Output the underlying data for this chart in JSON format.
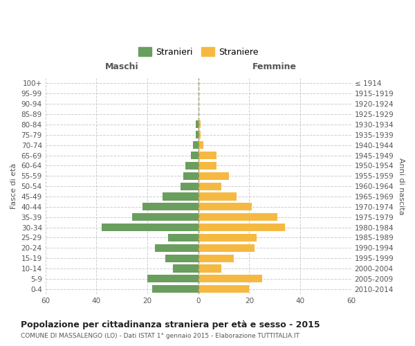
{
  "age_groups": [
    "0-4",
    "5-9",
    "10-14",
    "15-19",
    "20-24",
    "25-29",
    "30-34",
    "35-39",
    "40-44",
    "45-49",
    "50-54",
    "55-59",
    "60-64",
    "65-69",
    "70-74",
    "75-79",
    "80-84",
    "85-89",
    "90-94",
    "95-99",
    "100+"
  ],
  "birth_years": [
    "2010-2014",
    "2005-2009",
    "2000-2004",
    "1995-1999",
    "1990-1994",
    "1985-1989",
    "1980-1984",
    "1975-1979",
    "1970-1974",
    "1965-1969",
    "1960-1964",
    "1955-1959",
    "1950-1954",
    "1945-1949",
    "1940-1944",
    "1935-1939",
    "1930-1934",
    "1925-1929",
    "1920-1924",
    "1915-1919",
    "≤ 1914"
  ],
  "males": [
    18,
    20,
    10,
    13,
    17,
    12,
    38,
    26,
    22,
    14,
    7,
    6,
    5,
    3,
    2,
    1,
    1,
    0,
    0,
    0,
    0
  ],
  "females": [
    20,
    25,
    9,
    14,
    22,
    23,
    34,
    31,
    21,
    15,
    9,
    12,
    7,
    7,
    2,
    1,
    1,
    0,
    0,
    0,
    0
  ],
  "male_color": "#6a9e5e",
  "female_color": "#f5b942",
  "grid_color": "#cccccc",
  "background_color": "#ffffff",
  "center_line_color": "#999966",
  "title": "Popolazione per cittadinanza straniera per età e sesso - 2015",
  "subtitle": "COMUNE DI MASSALENGO (LO) - Dati ISTAT 1° gennaio 2015 - Elaborazione TUTTITALIA.IT",
  "xlabel_left": "Maschi",
  "xlabel_right": "Femmine",
  "ylabel_left": "Fasce di età",
  "ylabel_right": "Anni di nascita",
  "legend_males": "Stranieri",
  "legend_females": "Straniere",
  "xlim": 60,
  "bar_height": 0.75
}
